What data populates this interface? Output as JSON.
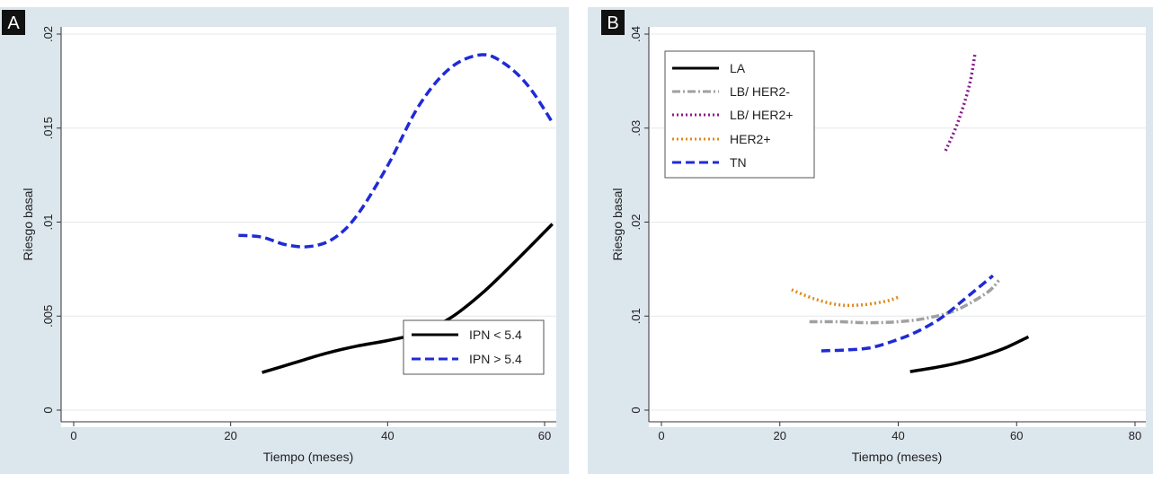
{
  "chart_data": [
    {
      "type": "line",
      "panel_label": "A",
      "xlabel": "Tiempo  (meses)",
      "ylabel": "Riesgo basal",
      "xlim": [
        0,
        60
      ],
      "ylim": [
        0,
        0.02
      ],
      "xticks": [
        0,
        20,
        40,
        60
      ],
      "xtick_labels": [
        "0",
        "20",
        "40",
        "60"
      ],
      "yticks": [
        0,
        0.005,
        0.01,
        0.015,
        0.02
      ],
      "ytick_labels": [
        "0",
        ".005",
        ".01",
        ".015",
        ".02"
      ],
      "grid": true,
      "legend_position": "bottom-right",
      "series": [
        {
          "name": "IPN < 5.4",
          "color": "#000000",
          "style": "solid",
          "x": [
            24,
            28,
            32,
            36,
            40,
            44,
            48,
            52,
            56,
            61
          ],
          "y": [
            0.002,
            0.0025,
            0.003,
            0.0034,
            0.0037,
            0.0041,
            0.0049,
            0.0062,
            0.0078,
            0.0099
          ]
        },
        {
          "name": "IPN > 5.4",
          "color": "#1f2bd6",
          "style": "dashed",
          "x": [
            21,
            24,
            27,
            30,
            33,
            36,
            40,
            44,
            48,
            52,
            55,
            58,
            61
          ],
          "y": [
            0.0093,
            0.0092,
            0.0088,
            0.0087,
            0.0091,
            0.0103,
            0.013,
            0.0162,
            0.0182,
            0.0189,
            0.0184,
            0.0172,
            0.0153
          ]
        }
      ]
    },
    {
      "type": "line",
      "panel_label": "B",
      "xlabel": "Tiempo  (meses)",
      "ylabel": "Riesgo basal",
      "xlim": [
        0,
        80
      ],
      "ylim": [
        0,
        0.04
      ],
      "xticks": [
        0,
        20,
        40,
        60,
        80
      ],
      "xtick_labels": [
        "0",
        "20",
        "40",
        "60",
        "80"
      ],
      "yticks": [
        0,
        0.01,
        0.02,
        0.03,
        0.04
      ],
      "ytick_labels": [
        "0",
        ".01",
        ".02",
        ".03",
        ".04"
      ],
      "grid": true,
      "legend_position": "top-left",
      "series": [
        {
          "name": "LA",
          "color": "#000000",
          "style": "solid",
          "x": [
            42,
            46,
            50,
            54,
            58,
            62
          ],
          "y": [
            0.0041,
            0.0045,
            0.005,
            0.0057,
            0.0066,
            0.0078
          ]
        },
        {
          "name": "LB/ HER2-",
          "color": "#a0a0a0",
          "style": "dashdot",
          "x": [
            25,
            30,
            35,
            40,
            45,
            50,
            55,
            57
          ],
          "y": [
            0.0094,
            0.0094,
            0.0093,
            0.0094,
            0.0098,
            0.0107,
            0.0125,
            0.0138
          ]
        },
        {
          "name": "LB/ HER2+",
          "color": "#8b1a8b",
          "style": "dotted",
          "x": [
            48,
            50,
            52,
            53
          ],
          "y": [
            0.0276,
            0.0305,
            0.0345,
            0.038
          ]
        },
        {
          "name": "HER2+",
          "color": "#e08a1e",
          "style": "dotted",
          "x": [
            22,
            26,
            30,
            34,
            38,
            40
          ],
          "y": [
            0.0128,
            0.0118,
            0.0112,
            0.0112,
            0.0116,
            0.012
          ]
        },
        {
          "name": "TN",
          "color": "#1f2bd6",
          "style": "dashed",
          "x": [
            27,
            31,
            35,
            39,
            43,
            47,
            51,
            56
          ],
          "y": [
            0.0063,
            0.0064,
            0.0066,
            0.0073,
            0.0083,
            0.0097,
            0.0117,
            0.0143
          ]
        }
      ]
    }
  ]
}
